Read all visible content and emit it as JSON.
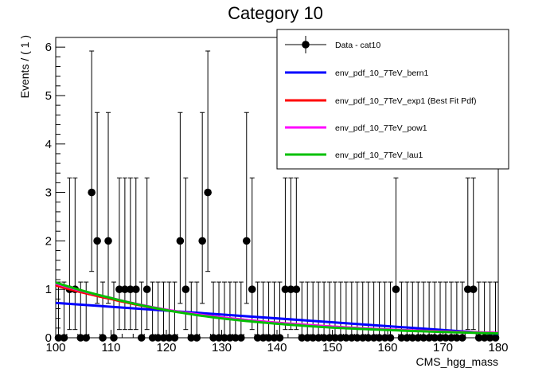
{
  "chart_data": {
    "type": "scatter",
    "title": "Category 10",
    "xlabel": "CMS_hgg_mass",
    "ylabel": "Events / ( 1 )",
    "xlim": [
      100,
      180
    ],
    "ylim": [
      0,
      6.2
    ],
    "x_ticks": [
      100,
      110,
      120,
      130,
      140,
      150,
      160,
      170,
      180
    ],
    "y_ticks": [
      0,
      1,
      2,
      3,
      4,
      5,
      6
    ],
    "grid": false,
    "legend_position": "top-right",
    "data_series": {
      "name": "Data - cat10",
      "color": "#000000",
      "x": [
        100.5,
        101.5,
        102.5,
        103.5,
        104.5,
        105.5,
        106.5,
        107.5,
        108.5,
        109.5,
        110.5,
        111.5,
        112.5,
        113.5,
        114.5,
        115.5,
        116.5,
        117.5,
        118.5,
        119.5,
        120.5,
        121.5,
        122.5,
        123.5,
        124.5,
        125.5,
        126.5,
        127.5,
        128.5,
        129.5,
        130.5,
        131.5,
        132.5,
        133.5,
        134.5,
        135.5,
        136.5,
        137.5,
        138.5,
        139.5,
        140.5,
        141.5,
        142.5,
        143.5,
        144.5,
        145.5,
        146.5,
        147.5,
        148.5,
        149.5,
        150.5,
        151.5,
        152.5,
        153.5,
        154.5,
        155.5,
        156.5,
        157.5,
        158.5,
        159.5,
        160.5,
        161.5,
        162.5,
        163.5,
        164.5,
        165.5,
        166.5,
        167.5,
        168.5,
        169.5,
        170.5,
        171.5,
        172.5,
        173.5,
        174.5,
        175.5,
        176.5,
        177.5,
        178.5,
        179.5
      ],
      "y": [
        0,
        0,
        1,
        1,
        0,
        0,
        3,
        2,
        0,
        2,
        0,
        1,
        1,
        1,
        1,
        0,
        1,
        0,
        0,
        0,
        0,
        0,
        2,
        1,
        0,
        0,
        2,
        3,
        0,
        0,
        0,
        0,
        0,
        0,
        2,
        1,
        0,
        0,
        0,
        0,
        0,
        1,
        1,
        1,
        0,
        0,
        0,
        0,
        0,
        0,
        0,
        0,
        0,
        0,
        0,
        0,
        0,
        0,
        0,
        0,
        0,
        1,
        0,
        0,
        0,
        0,
        0,
        0,
        0,
        0,
        0,
        0,
        0,
        0,
        1,
        1,
        0,
        0,
        0,
        0
      ],
      "err_high": [
        {
          "n": 0,
          "up": 1.15
        },
        {
          "n": 1,
          "up": 2.3
        },
        {
          "n": 2,
          "up": 2.65
        },
        {
          "n": 3,
          "up": 2.92
        }
      ],
      "err_low": [
        {
          "n": 0,
          "down": 0
        },
        {
          "n": 1,
          "down": 0.83
        },
        {
          "n": 2,
          "down": 1.29
        },
        {
          "n": 3,
          "down": 1.63
        }
      ]
    },
    "curves": [
      {
        "name": "env_pdf_10_7TeV_bern1",
        "color": "#0000ff",
        "x": [
          100,
          180
        ],
        "y": [
          0.72,
          0.08
        ]
      },
      {
        "name": "env_pdf_10_7TeV_exp1 (Best Fit Pdf)",
        "color": "#ff0000",
        "x": [
          100,
          110,
          120,
          130,
          140,
          150,
          160,
          170,
          180
        ],
        "y": [
          1.08,
          0.8,
          0.57,
          0.42,
          0.31,
          0.23,
          0.17,
          0.13,
          0.1
        ]
      },
      {
        "name": "env_pdf_10_7TeV_pow1",
        "color": "#ff00ff",
        "x": [
          100,
          110,
          120,
          130,
          140,
          150,
          160,
          170,
          180
        ],
        "y": [
          1.12,
          0.82,
          0.58,
          0.42,
          0.31,
          0.23,
          0.17,
          0.13,
          0.1
        ]
      },
      {
        "name": "env_pdf_10_7TeV_lau1",
        "color": "#00c000",
        "x": [
          100,
          110,
          120,
          130,
          140,
          150,
          160,
          170,
          180
        ],
        "y": [
          1.14,
          0.82,
          0.57,
          0.4,
          0.29,
          0.21,
          0.16,
          0.12,
          0.09
        ]
      }
    ],
    "legend_entries": [
      "Data - cat10",
      "env_pdf_10_7TeV_bern1",
      "env_pdf_10_7TeV_exp1 (Best Fit Pdf)",
      "env_pdf_10_7TeV_pow1",
      "env_pdf_10_7TeV_lau1"
    ]
  }
}
